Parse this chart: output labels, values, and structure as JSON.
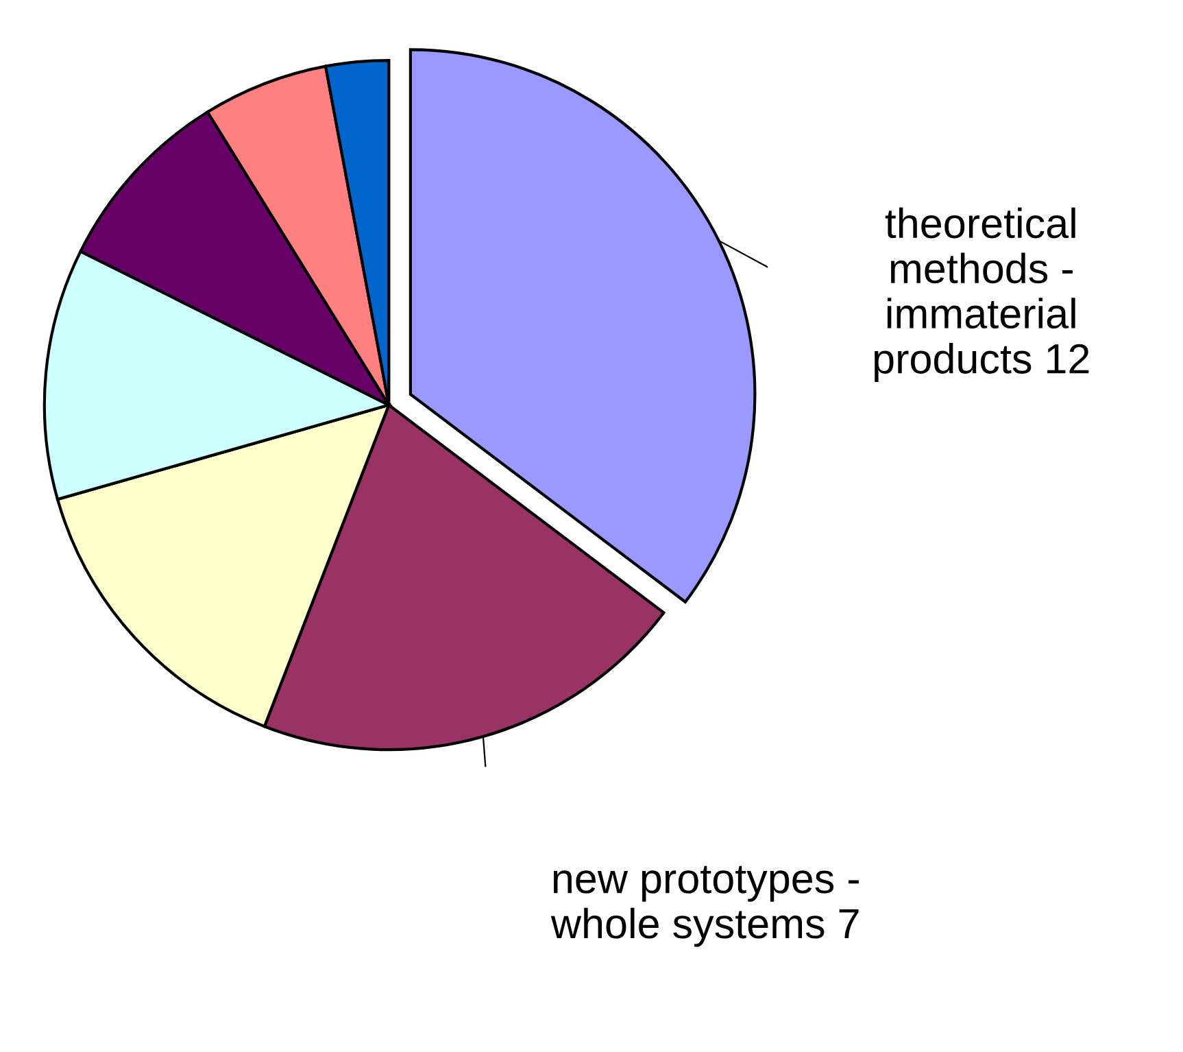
{
  "chart_data": {
    "type": "pie",
    "categories": [
      "theoretical methods - immaterial products",
      "new prototypes - whole systems",
      null,
      null,
      null,
      null,
      null
    ],
    "values": [
      12,
      7,
      5,
      4,
      3,
      2,
      1
    ],
    "colors": [
      "#9999ff",
      "#993366",
      "#ffffcc",
      "#ccffff",
      "#660066",
      "#ff8080",
      "#0066cc"
    ],
    "value_labels": [
      "12",
      "7",
      null,
      null,
      null,
      null,
      null
    ],
    "legend": false
  }
}
